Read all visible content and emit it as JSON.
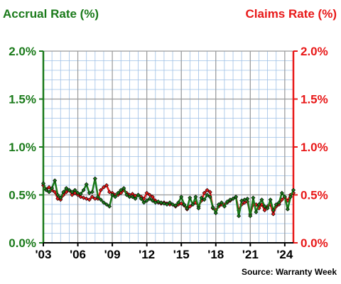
{
  "chart_data": {
    "type": "line",
    "left_axis_label": "Accrual Rate (%)",
    "right_axis_label": "Claims Rate (%)",
    "source": "Source: Warranty Week",
    "ylim": [
      0,
      2
    ],
    "y_ticks": [
      "0.0%",
      "0.5%",
      "1.0%",
      "1.5%",
      "2.0%"
    ],
    "x_tick_labels": [
      "'03",
      "'06",
      "'09",
      "'12",
      "'15",
      "'18",
      "'21",
      "'24"
    ],
    "x_tick_years": [
      2003,
      2006,
      2009,
      2012,
      2015,
      2018,
      2021,
      2024
    ],
    "xlim": [
      2003,
      2024.75
    ],
    "grid": true,
    "colors": {
      "accrual": "#1a7a1a",
      "claims": "#e81818",
      "grid_minor": "#9ec0e6",
      "grid_major": "#999999"
    },
    "series": [
      {
        "name": "Accrual Rate (%)",
        "axis": "left",
        "x": [
          2003.0,
          2003.25,
          2003.5,
          2003.75,
          2004.0,
          2004.25,
          2004.5,
          2004.75,
          2005.0,
          2005.25,
          2005.5,
          2005.75,
          2006.0,
          2006.25,
          2006.5,
          2006.75,
          2007.0,
          2007.25,
          2007.5,
          2007.75,
          2008.0,
          2008.25,
          2008.5,
          2008.75,
          2009.0,
          2009.25,
          2009.5,
          2009.75,
          2010.0,
          2010.25,
          2010.5,
          2010.75,
          2011.0,
          2011.25,
          2011.5,
          2011.75,
          2012.0,
          2012.25,
          2012.5,
          2012.75,
          2013.0,
          2013.25,
          2013.5,
          2013.75,
          2014.0,
          2014.25,
          2014.5,
          2014.75,
          2015.0,
          2015.25,
          2015.5,
          2015.75,
          2016.0,
          2016.25,
          2016.5,
          2016.75,
          2017.0,
          2017.25,
          2017.5,
          2017.75,
          2018.0,
          2018.25,
          2018.5,
          2018.75,
          2019.0,
          2019.25,
          2019.5,
          2019.75,
          2020.0,
          2020.25,
          2020.5,
          2020.75,
          2021.0,
          2021.25,
          2021.5,
          2021.75,
          2022.0,
          2022.25,
          2022.5,
          2022.75,
          2023.0,
          2023.25,
          2023.5,
          2023.75,
          2024.0,
          2024.25,
          2024.5,
          2024.75
        ],
        "values": [
          0.62,
          0.55,
          0.53,
          0.57,
          0.65,
          0.5,
          0.47,
          0.53,
          0.57,
          0.55,
          0.53,
          0.55,
          0.52,
          0.51,
          0.55,
          0.61,
          0.52,
          0.53,
          0.67,
          0.48,
          0.45,
          0.42,
          0.4,
          0.38,
          0.5,
          0.48,
          0.52,
          0.55,
          0.57,
          0.5,
          0.48,
          0.48,
          0.46,
          0.5,
          0.46,
          0.42,
          0.44,
          0.46,
          0.44,
          0.42,
          0.43,
          0.42,
          0.41,
          0.4,
          0.42,
          0.4,
          0.39,
          0.42,
          0.48,
          0.4,
          0.36,
          0.47,
          0.4,
          0.48,
          0.36,
          0.47,
          0.45,
          0.5,
          0.48,
          0.37,
          0.31,
          0.4,
          0.42,
          0.38,
          0.43,
          0.45,
          0.46,
          0.48,
          0.28,
          0.44,
          0.45,
          0.46,
          0.28,
          0.47,
          0.32,
          0.4,
          0.45,
          0.38,
          0.36,
          0.45,
          0.34,
          0.4,
          0.42,
          0.52,
          0.48,
          0.35,
          0.48,
          0.55
        ]
      },
      {
        "name": "Claims Rate (%)",
        "axis": "right",
        "x": [
          2003.0,
          2003.25,
          2003.5,
          2003.75,
          2004.0,
          2004.25,
          2004.5,
          2004.75,
          2005.0,
          2005.25,
          2005.5,
          2005.75,
          2006.0,
          2006.25,
          2006.5,
          2006.75,
          2007.0,
          2007.25,
          2007.5,
          2007.75,
          2008.0,
          2008.25,
          2008.5,
          2008.75,
          2009.0,
          2009.25,
          2009.5,
          2009.75,
          2010.0,
          2010.25,
          2010.5,
          2010.75,
          2011.0,
          2011.25,
          2011.5,
          2011.75,
          2012.0,
          2012.25,
          2012.5,
          2012.75,
          2013.0,
          2013.25,
          2013.5,
          2013.75,
          2014.0,
          2014.25,
          2014.5,
          2014.75,
          2015.0,
          2015.25,
          2015.5,
          2015.75,
          2016.0,
          2016.25,
          2016.5,
          2016.75,
          2017.0,
          2017.25,
          2017.5,
          2017.75,
          2018.0,
          2018.25,
          2018.5,
          2018.75,
          2019.0,
          2019.25,
          2019.5,
          2019.75,
          2020.0,
          2020.25,
          2020.5,
          2020.75,
          2021.0,
          2021.25,
          2021.5,
          2021.75,
          2022.0,
          2022.25,
          2022.5,
          2022.75,
          2023.0,
          2023.25,
          2023.5,
          2023.75,
          2024.0,
          2024.25,
          2024.5,
          2024.75
        ],
        "values": [
          0.6,
          0.56,
          0.58,
          0.55,
          0.53,
          0.46,
          0.45,
          0.5,
          0.53,
          0.55,
          0.5,
          0.52,
          0.5,
          0.48,
          0.47,
          0.46,
          0.45,
          0.48,
          0.46,
          0.46,
          0.55,
          0.58,
          0.6,
          0.53,
          0.52,
          0.5,
          0.5,
          0.52,
          0.55,
          0.52,
          0.5,
          0.51,
          0.49,
          0.5,
          0.48,
          0.46,
          0.52,
          0.5,
          0.48,
          0.44,
          0.42,
          0.41,
          0.42,
          0.41,
          0.4,
          0.4,
          0.38,
          0.4,
          0.41,
          0.39,
          0.35,
          0.38,
          0.4,
          0.42,
          0.38,
          0.44,
          0.52,
          0.55,
          0.53,
          0.36,
          0.34,
          0.38,
          0.4,
          0.4,
          0.42,
          0.44,
          0.46,
          0.48,
          0.34,
          0.4,
          0.42,
          0.43,
          0.3,
          0.4,
          0.4,
          0.36,
          0.4,
          0.34,
          0.38,
          0.4,
          0.3,
          0.38,
          0.4,
          0.45,
          0.48,
          0.44,
          0.5,
          0.52
        ]
      }
    ]
  }
}
